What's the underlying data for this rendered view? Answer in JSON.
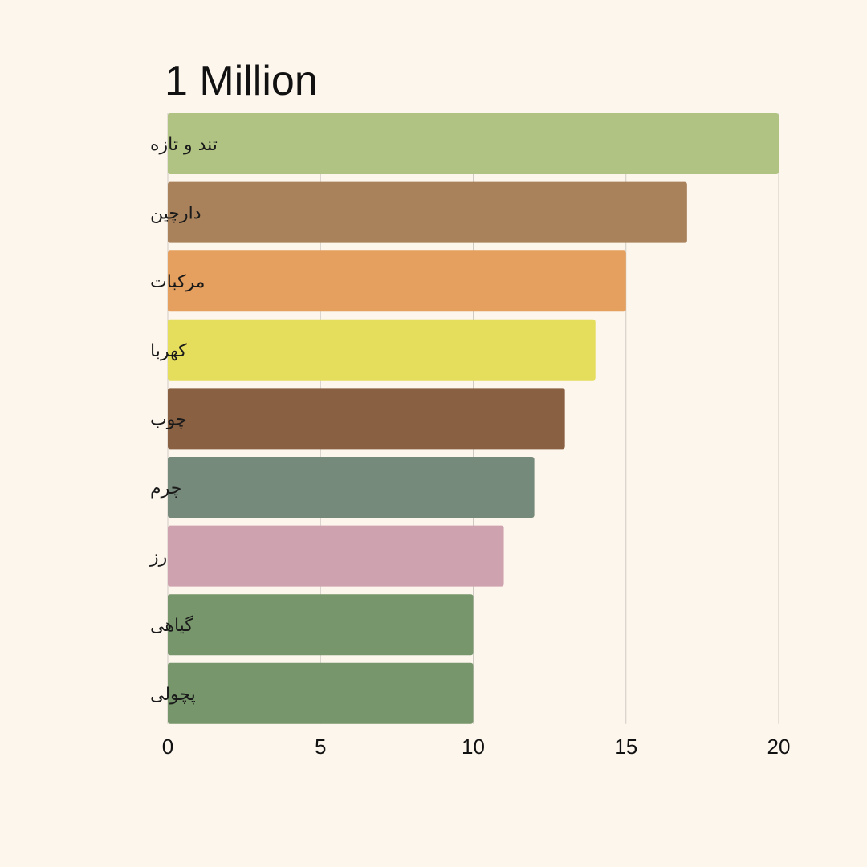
{
  "chart_data": {
    "type": "bar",
    "orientation": "horizontal",
    "title": "1 Million",
    "xlabel": "",
    "ylabel": "",
    "xlim": [
      0,
      20
    ],
    "xticks": [
      "0",
      "5",
      "10",
      "15",
      "20"
    ],
    "grid": true,
    "categories": [
      "تند و تازه",
      "دارچین",
      "مرکبات",
      "کهربا",
      "چوب",
      "چرم",
      "رز",
      "گیاهی",
      "پچولی"
    ],
    "values": [
      20,
      17,
      15,
      14,
      13,
      12,
      11,
      10,
      10
    ],
    "colors": [
      "#b0c382",
      "#a9825c",
      "#e59f5e",
      "#e4de5c",
      "#8a6042",
      "#768a7b",
      "#cfa2af",
      "#77966b",
      "#77966b"
    ]
  }
}
